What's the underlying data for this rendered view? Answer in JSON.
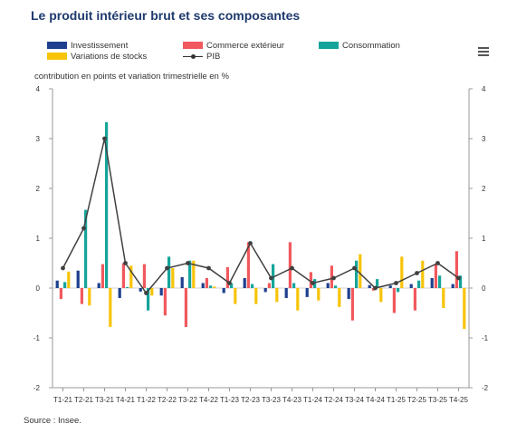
{
  "title": "Le produit intérieur brut et ses composantes",
  "menu": {
    "icon": "hamburger-menu-icon"
  },
  "source": "Source : Insee.",
  "chart_data": {
    "type": "bar",
    "ylabel": "contribution en points et variation trimestrielle en %",
    "xlabel": "",
    "ylim": [
      -2,
      4
    ],
    "yticks": [
      4,
      3,
      2,
      1,
      0,
      -1,
      -2
    ],
    "grid": false,
    "legend_position": "top",
    "categories": [
      "T1-21",
      "T2-21",
      "T3-21",
      "T4-21",
      "T1-22",
      "T2-22",
      "T3-22",
      "T4-22",
      "T1-23",
      "T2-23",
      "T3-23",
      "T4-23",
      "T1-24",
      "T2-24",
      "T3-24",
      "T4-24",
      "T1-25",
      "T2-25",
      "T3-25",
      "T4-25"
    ],
    "series": [
      {
        "name": "Investissement",
        "color": "#1d3f8e",
        "kind": "bar",
        "values": [
          0.15,
          0.35,
          0.1,
          -0.2,
          -0.07,
          -0.15,
          0.22,
          0.1,
          -0.1,
          0.2,
          -0.08,
          -0.2,
          -0.18,
          0.1,
          -0.22,
          0.06,
          0.05,
          0.08,
          0.2,
          0.08
        ]
      },
      {
        "name": "Commerce extérieur",
        "color": "#f0595e",
        "kind": "bar",
        "values": [
          -0.22,
          -0.32,
          0.48,
          0.5,
          0.48,
          -0.55,
          -0.78,
          0.2,
          0.42,
          0.92,
          0.1,
          0.92,
          0.32,
          0.45,
          -0.65,
          -0.05,
          -0.5,
          -0.45,
          0.48,
          0.74
        ]
      },
      {
        "name": "Consommation",
        "color": "#16a49a",
        "kind": "bar",
        "values": [
          0.12,
          1.57,
          3.33,
          0.02,
          -0.45,
          0.63,
          0.55,
          0.05,
          0.1,
          0.08,
          0.48,
          0.1,
          0.18,
          0.05,
          0.55,
          0.18,
          -0.08,
          0.15,
          0.25,
          0.25
        ]
      },
      {
        "name": "Variations de stocks",
        "color": "#f7c409",
        "kind": "bar",
        "values": [
          0.33,
          -0.35,
          -0.78,
          0.45,
          -0.15,
          0.4,
          0.55,
          0.03,
          -0.32,
          -0.32,
          -0.28,
          -0.45,
          -0.25,
          -0.38,
          0.68,
          -0.28,
          0.63,
          0.55,
          -0.4,
          -0.82
        ]
      },
      {
        "name": "PIB",
        "color": "#404040",
        "kind": "line",
        "values": [
          0.4,
          1.2,
          3.0,
          0.5,
          -0.1,
          0.4,
          0.5,
          0.4,
          0.1,
          0.9,
          0.2,
          0.4,
          0.1,
          0.2,
          0.4,
          0.0,
          0.1,
          0.3,
          0.5,
          0.2
        ]
      }
    ]
  }
}
